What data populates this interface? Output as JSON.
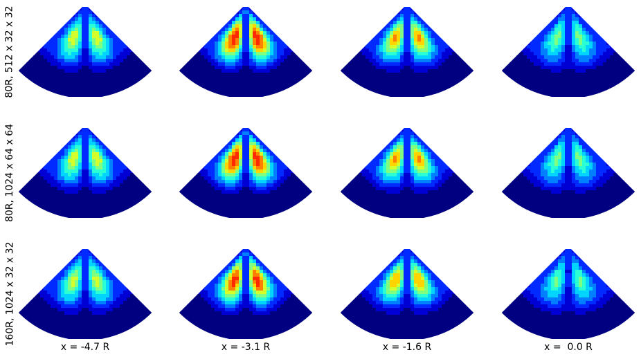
{
  "chart_data": {
    "type": "heatmap",
    "row_labels": [
      "80R, 512 x 32 x 32",
      "80R, 1024 x 64 x 64",
      "160R, 1024 x 32 x 32"
    ],
    "column_labels": [
      "x = -4.7 R",
      "x = -3.1 R",
      "x = -1.6 R",
      "x =  0.0 R"
    ],
    "colormap": "jet",
    "colormap_stops": [
      "#00007f",
      "#0000ff",
      "#007fff",
      "#00ffff",
      "#7fff7f",
      "#ffff00",
      "#ff7f00",
      "#ff0000",
      "#7f0000"
    ],
    "panel_shape": "wedge (circular sector)",
    "column_peak_level": [
      0.6,
      0.88,
      0.72,
      0.5
    ],
    "row_peak_scale": [
      1.0,
      1.0,
      0.97
    ]
  }
}
